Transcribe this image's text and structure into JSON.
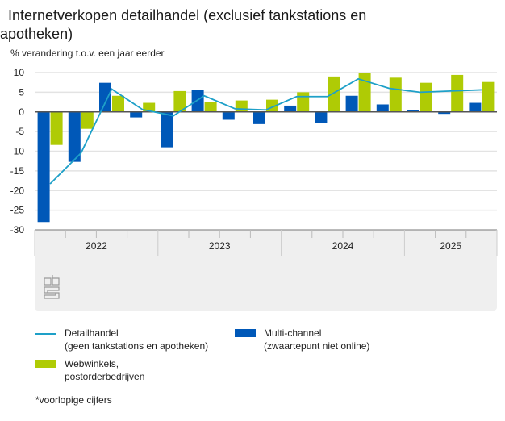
{
  "title": "Internetverkopen detailhandel (exclusief tankstations en apotheken)",
  "chart_data": {
    "type": "bar",
    "title": "Internetverkopen detailhandel (exclusief tankstations en apotheken)",
    "ylabel": "% verandering t.o.v. een jaar eerder",
    "xlabel": "",
    "ylim": [
      -30,
      10
    ],
    "yticks": [
      10,
      5,
      0,
      -5,
      -10,
      -15,
      -20,
      -25,
      -30
    ],
    "grid": true,
    "years": [
      {
        "label": "2022",
        "quarters": 4
      },
      {
        "label": "2023",
        "quarters": 4
      },
      {
        "label": "2024",
        "quarters": 4
      },
      {
        "label": "2025",
        "quarters": 3
      }
    ],
    "categories": [
      "2022 Q1",
      "2022 Q2",
      "2022 Q3",
      "2022 Q4",
      "2023 Q1",
      "2023 Q2",
      "2023 Q3",
      "2023 Q4",
      "2024 Q1",
      "2024 Q2",
      "2024 Q3",
      "2024 Q4",
      "2025 Q1",
      "2025 Q2",
      "2025 Q3"
    ],
    "series": [
      {
        "name": "Multi-channel (zwaartepunt niet online)",
        "type": "bar",
        "color": "#0058b8",
        "values": [
          -28.0,
          -12.7,
          7.4,
          -1.4,
          -9.0,
          5.5,
          -2.0,
          -3.1,
          1.6,
          -2.9,
          4.1,
          1.9,
          0.5,
          -0.5,
          2.3
        ]
      },
      {
        "name": "Webwinkels, postorderbedrijven",
        "type": "bar",
        "color": "#afcb05",
        "values": [
          -8.4,
          -4.3,
          4.1,
          2.3,
          5.3,
          2.5,
          2.9,
          3.1,
          5.0,
          9.0,
          10.0,
          8.7,
          7.4,
          9.4,
          7.6
        ]
      },
      {
        "name": "Detailhandel (geen tankstations en apotheken)",
        "type": "line",
        "color": "#1ea0c8",
        "values": [
          -18.3,
          -10.5,
          5.8,
          0.6,
          -1.0,
          4.1,
          0.8,
          0.5,
          3.9,
          3.9,
          8.4,
          6.0,
          5.0,
          5.3,
          5.6
        ]
      }
    ],
    "legend_position": "bottom"
  },
  "legend": {
    "line_label_1": "Detailhandel",
    "line_label_2": "(geen tankstations en apotheken)",
    "multi_label_1": "Multi-channel",
    "multi_label_2": "(zwaartepunt niet online)",
    "web_label_1": "Webwinkels,",
    "web_label_2": "postorderbedrijven"
  },
  "note": "*voorlopige cijfers",
  "logo": "cbs-logo"
}
